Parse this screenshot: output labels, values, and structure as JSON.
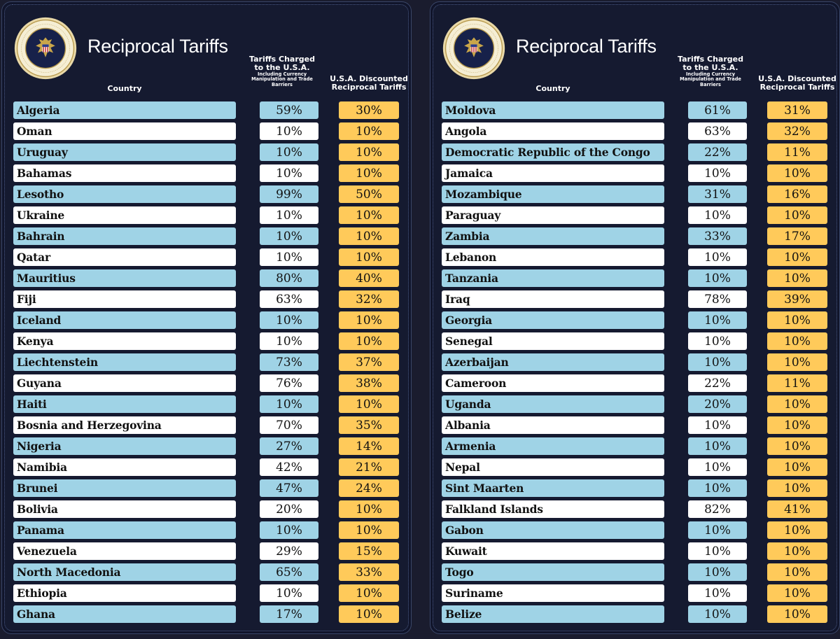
{
  "colors": {
    "background": "#151a30",
    "row_blue": "#9fd3e6",
    "row_white": "#ffffff",
    "reciprocal_yellow": "#ffca5a"
  },
  "left": {
    "title": "Reciprocal Tariffs",
    "headers": {
      "country": "Country",
      "tariffs_main": "Tariffs Charged to the U.S.A.",
      "tariffs_sub": "Including Currency Manipulation and Trade Barriers",
      "reciprocal": "U.S.A. Discounted Reciprocal Tariffs"
    },
    "rows": [
      {
        "country": "Algeria",
        "tariff": "59%",
        "reciprocal": "30%"
      },
      {
        "country": "Oman",
        "tariff": "10%",
        "reciprocal": "10%"
      },
      {
        "country": "Uruguay",
        "tariff": "10%",
        "reciprocal": "10%"
      },
      {
        "country": "Bahamas",
        "tariff": "10%",
        "reciprocal": "10%"
      },
      {
        "country": "Lesotho",
        "tariff": "99%",
        "reciprocal": "50%"
      },
      {
        "country": "Ukraine",
        "tariff": "10%",
        "reciprocal": "10%"
      },
      {
        "country": "Bahrain",
        "tariff": "10%",
        "reciprocal": "10%"
      },
      {
        "country": "Qatar",
        "tariff": "10%",
        "reciprocal": "10%"
      },
      {
        "country": "Mauritius",
        "tariff": "80%",
        "reciprocal": "40%"
      },
      {
        "country": "Fiji",
        "tariff": "63%",
        "reciprocal": "32%"
      },
      {
        "country": "Iceland",
        "tariff": "10%",
        "reciprocal": "10%"
      },
      {
        "country": "Kenya",
        "tariff": "10%",
        "reciprocal": "10%"
      },
      {
        "country": "Liechtenstein",
        "tariff": "73%",
        "reciprocal": "37%"
      },
      {
        "country": "Guyana",
        "tariff": "76%",
        "reciprocal": "38%"
      },
      {
        "country": "Haiti",
        "tariff": "10%",
        "reciprocal": "10%"
      },
      {
        "country": "Bosnia and Herzegovina",
        "tariff": "70%",
        "reciprocal": "35%"
      },
      {
        "country": "Nigeria",
        "tariff": "27%",
        "reciprocal": "14%"
      },
      {
        "country": "Namibia",
        "tariff": "42%",
        "reciprocal": "21%"
      },
      {
        "country": "Brunei",
        "tariff": "47%",
        "reciprocal": "24%"
      },
      {
        "country": "Bolivia",
        "tariff": "20%",
        "reciprocal": "10%"
      },
      {
        "country": "Panama",
        "tariff": "10%",
        "reciprocal": "10%"
      },
      {
        "country": "Venezuela",
        "tariff": "29%",
        "reciprocal": "15%"
      },
      {
        "country": "North Macedonia",
        "tariff": "65%",
        "reciprocal": "33%"
      },
      {
        "country": "Ethiopia",
        "tariff": "10%",
        "reciprocal": "10%"
      },
      {
        "country": "Ghana",
        "tariff": "17%",
        "reciprocal": "10%"
      }
    ]
  },
  "right": {
    "title": "Reciprocal Tariffs",
    "headers": {
      "country": "Country",
      "tariffs_main": "Tariffs Charged to the U.S.A.",
      "tariffs_sub": "Including Currency Manipulation and Trade Barriers",
      "reciprocal": "U.S.A. Discounted Reciprocal Tariffs"
    },
    "rows": [
      {
        "country": "Moldova",
        "tariff": "61%",
        "reciprocal": "31%"
      },
      {
        "country": "Angola",
        "tariff": "63%",
        "reciprocal": "32%"
      },
      {
        "country": "Democratic Republic of the Congo",
        "tariff": "22%",
        "reciprocal": "11%"
      },
      {
        "country": "Jamaica",
        "tariff": "10%",
        "reciprocal": "10%"
      },
      {
        "country": "Mozambique",
        "tariff": "31%",
        "reciprocal": "16%"
      },
      {
        "country": "Paraguay",
        "tariff": "10%",
        "reciprocal": "10%"
      },
      {
        "country": "Zambia",
        "tariff": "33%",
        "reciprocal": "17%"
      },
      {
        "country": "Lebanon",
        "tariff": "10%",
        "reciprocal": "10%"
      },
      {
        "country": "Tanzania",
        "tariff": "10%",
        "reciprocal": "10%"
      },
      {
        "country": "Iraq",
        "tariff": "78%",
        "reciprocal": "39%"
      },
      {
        "country": "Georgia",
        "tariff": "10%",
        "reciprocal": "10%"
      },
      {
        "country": "Senegal",
        "tariff": "10%",
        "reciprocal": "10%"
      },
      {
        "country": "Azerbaijan",
        "tariff": "10%",
        "reciprocal": "10%"
      },
      {
        "country": "Cameroon",
        "tariff": "22%",
        "reciprocal": "11%"
      },
      {
        "country": "Uganda",
        "tariff": "20%",
        "reciprocal": "10%"
      },
      {
        "country": "Albania",
        "tariff": "10%",
        "reciprocal": "10%"
      },
      {
        "country": "Armenia",
        "tariff": "10%",
        "reciprocal": "10%"
      },
      {
        "country": "Nepal",
        "tariff": "10%",
        "reciprocal": "10%"
      },
      {
        "country": "Sint Maarten",
        "tariff": "10%",
        "reciprocal": "10%"
      },
      {
        "country": "Falkland Islands",
        "tariff": "82%",
        "reciprocal": "41%"
      },
      {
        "country": "Gabon",
        "tariff": "10%",
        "reciprocal": "10%"
      },
      {
        "country": "Kuwait",
        "tariff": "10%",
        "reciprocal": "10%"
      },
      {
        "country": "Togo",
        "tariff": "10%",
        "reciprocal": "10%"
      },
      {
        "country": "Suriname",
        "tariff": "10%",
        "reciprocal": "10%"
      },
      {
        "country": "Belize",
        "tariff": "10%",
        "reciprocal": "10%"
      }
    ]
  }
}
